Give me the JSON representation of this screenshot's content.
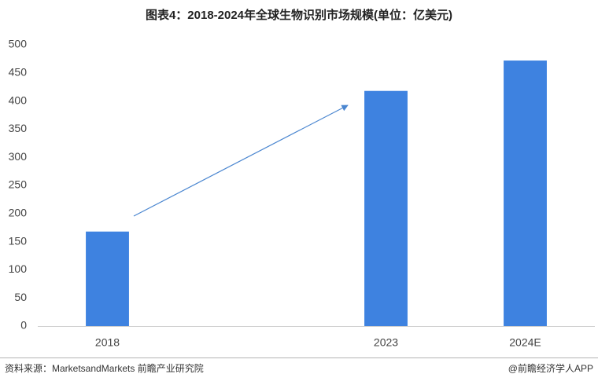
{
  "chart_data": {
    "type": "bar",
    "title": "图表4：2018-2024年全球生物识别市场规模(单位：亿美元)",
    "categories": [
      "2018",
      null,
      "2023",
      "2024E"
    ],
    "values": [
      168,
      null,
      418,
      472
    ],
    "color": "#3e82e0",
    "ylim": [
      0,
      500
    ],
    "yticks": [
      0,
      50,
      100,
      150,
      200,
      250,
      300,
      350,
      400,
      450,
      500
    ],
    "grid": false,
    "source": "资料来源：MarketsandMarkets 前瞻产业研究院",
    "credit": "@前瞻经济学人APP"
  }
}
